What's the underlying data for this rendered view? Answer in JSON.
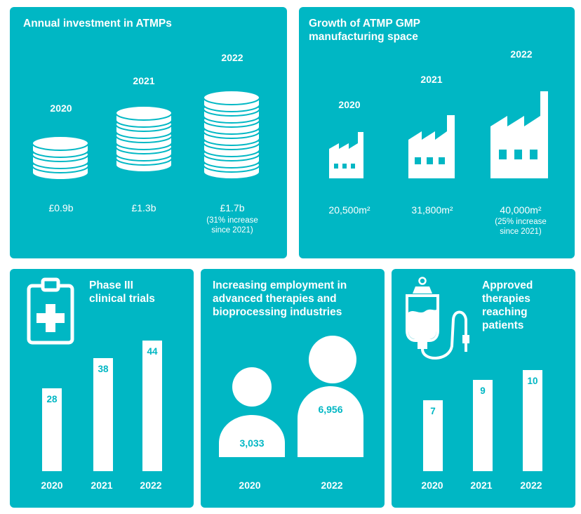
{
  "colors": {
    "panel": "#00b7c4",
    "foreground": "#ffffff"
  },
  "investment": {
    "title": "Annual investment in ATMPs",
    "icon": "coin-stack-icon",
    "items": [
      {
        "year": "2020",
        "value": "£0.9b",
        "coins": 3,
        "note": ""
      },
      {
        "year": "2021",
        "value": "£1.3b",
        "coins": 5,
        "note": ""
      },
      {
        "year": "2022",
        "value": "£1.7b",
        "coins": 7,
        "note": "(31% increase\nsince 2021)"
      }
    ]
  },
  "manufacturing": {
    "title": "Growth of ATMP GMP\nmanufacturing space",
    "icon": "factory-icon",
    "items": [
      {
        "year": "2020",
        "value": "20,500m²",
        "note": ""
      },
      {
        "year": "2021",
        "value": "31,800m²",
        "note": ""
      },
      {
        "year": "2022",
        "value": "40,000m²",
        "note": "(25% increase\nsince 2021)"
      }
    ]
  },
  "trials": {
    "title": "Phase III\nclinical trials",
    "icon": "clipboard-medical-icon",
    "chart_data": {
      "type": "bar",
      "categories": [
        "2020",
        "2021",
        "2022"
      ],
      "values": [
        28,
        38,
        44
      ]
    }
  },
  "employment": {
    "title": "Increasing employment in\nadvanced therapies and\nbioprocessing industries",
    "icon": "person-icon",
    "items": [
      {
        "year": "2020",
        "value": "3,033"
      },
      {
        "year": "2022",
        "value": "6,956"
      }
    ]
  },
  "therapies": {
    "title": "Approved\ntherapies\nreaching\npatients",
    "icon": "iv-bag-icon",
    "chart_data": {
      "type": "bar",
      "categories": [
        "2020",
        "2021",
        "2022"
      ],
      "values": [
        7,
        9,
        10
      ]
    }
  }
}
